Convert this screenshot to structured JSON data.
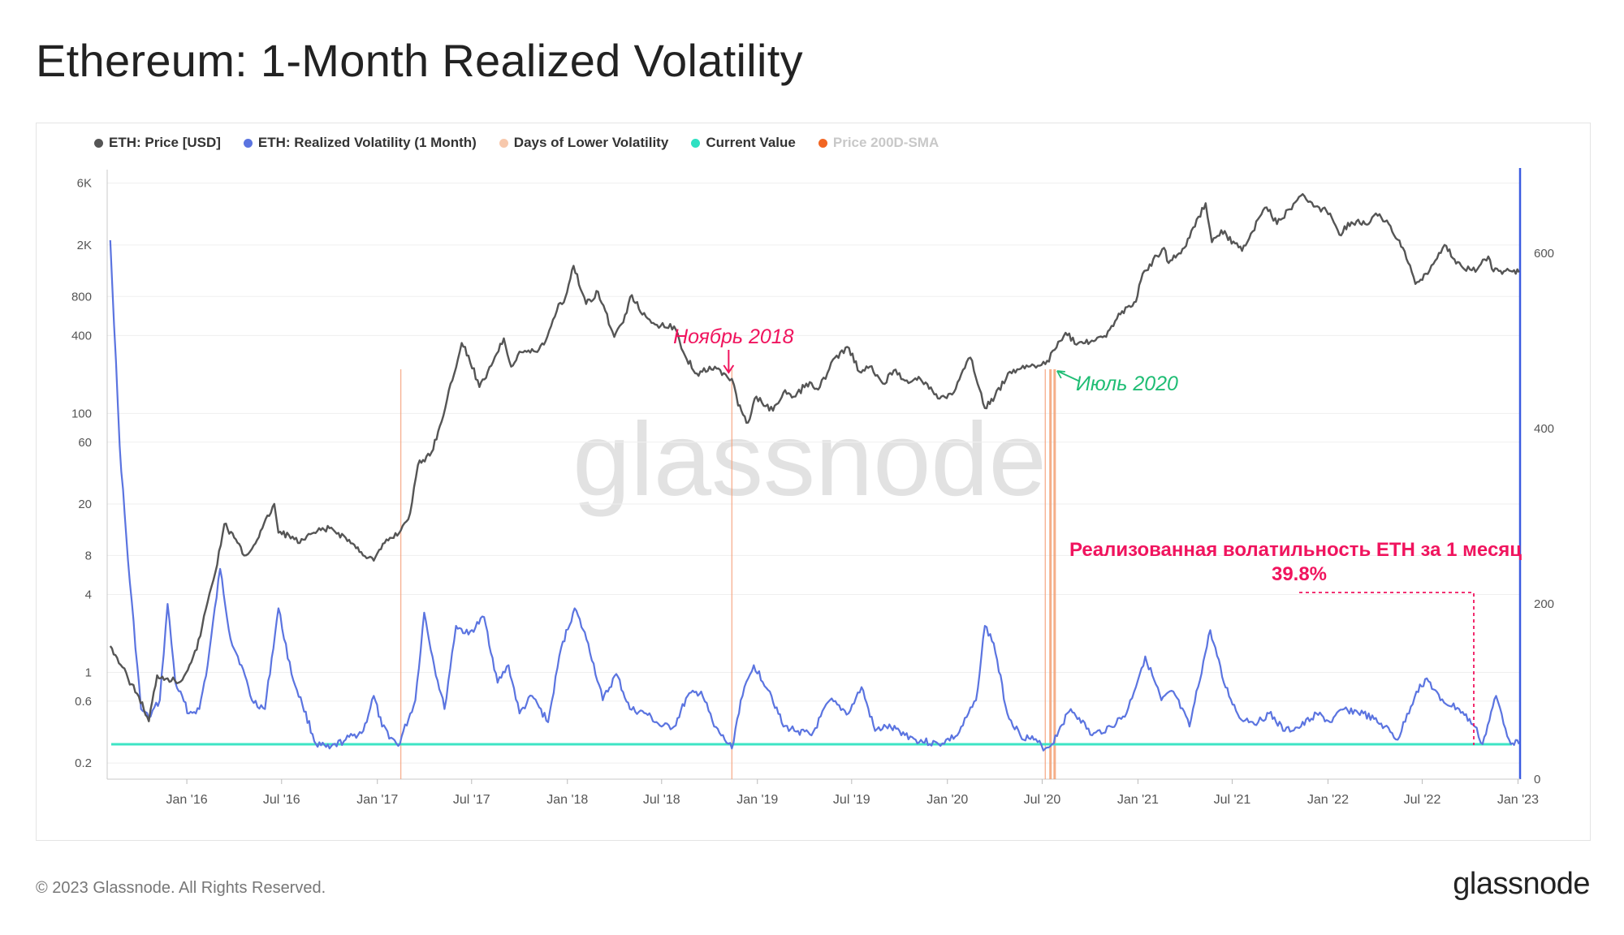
{
  "title": "Ethereum: 1-Month Realized Volatility",
  "legend": [
    {
      "label": "ETH: Price [USD]",
      "color": "#555555",
      "muted": false
    },
    {
      "label": "ETH: Realized Volatility (1 Month)",
      "color": "#5b74e0",
      "muted": false
    },
    {
      "label": "Days of Lower Volatility",
      "color": "#f7c8ac",
      "muted": false
    },
    {
      "label": "Current Value",
      "color": "#2ee0c2",
      "muted": false
    },
    {
      "label": "Price 200D-SMA",
      "color": "#f26522",
      "muted": true
    }
  ],
  "watermark": "glassnode",
  "footer": {
    "copyright": "© 2023 Glassnode. All Rights Reserved.",
    "brand": "glassnode"
  },
  "colors": {
    "price": "#555555",
    "volatility": "#5b74e0",
    "lower_vol": "#f5a07a",
    "lower_vol_thick": "#f39a6a",
    "current": "#3de4c4",
    "annotation_pink": "#f0145e",
    "annotation_green": "#1fbd74",
    "right_axis": "#3a5be0",
    "grid": "#efefef"
  },
  "annotations": {
    "nov2018": "Ноябрь 2018",
    "jul2020": "Июль 2020",
    "rv_line1": "Реализованная волатильность ETH за 1 месяц",
    "rv_line2": "39.8%"
  },
  "chart_data": {
    "type": "line",
    "title": "Ethereum: 1-Month Realized Volatility",
    "x_range": [
      "2015-08-01",
      "2023-01-05"
    ],
    "x_ticks": [
      "Jan '16",
      "Jul '16",
      "Jan '17",
      "Jul '17",
      "Jan '18",
      "Jul '18",
      "Jan '19",
      "Jul '19",
      "Jan '20",
      "Jul '20",
      "Jan '21",
      "Jul '21",
      "Jan '22",
      "Jul '22",
      "Jan '23"
    ],
    "y_left": {
      "scale": "log",
      "range": [
        0.15,
        7000
      ],
      "ticks": [
        "6K",
        "2K",
        "800",
        "400",
        "100",
        "60",
        "20",
        "8",
        "4",
        "1",
        "0.6",
        "0.2"
      ]
    },
    "y_right": {
      "scale": "linear",
      "range": [
        0,
        690
      ],
      "ticks": [
        "600",
        "400",
        "200",
        "0"
      ]
    },
    "current_value": 39.8,
    "lower_volatility_dates": [
      "2017-02-15",
      "2018-11-13",
      "2020-07-07",
      "2020-07-17",
      "2020-07-25"
    ],
    "series": [
      {
        "name": "ETH: Price [USD]",
        "axis": "left",
        "points": [
          [
            "2015-08-07",
            1.6
          ],
          [
            "2015-08-20",
            1.3
          ],
          [
            "2015-09-10",
            0.9
          ],
          [
            "2015-10-01",
            0.65
          ],
          [
            "2015-10-20",
            0.42
          ],
          [
            "2015-11-05",
            0.95
          ],
          [
            "2015-11-25",
            0.9
          ],
          [
            "2015-12-20",
            0.85
          ],
          [
            "2016-01-20",
            1.5
          ],
          [
            "2016-02-10",
            3.5
          ],
          [
            "2016-02-25",
            6
          ],
          [
            "2016-03-13",
            14
          ],
          [
            "2016-04-01",
            11
          ],
          [
            "2016-04-20",
            8
          ],
          [
            "2016-05-05",
            9
          ],
          [
            "2016-05-25",
            13
          ],
          [
            "2016-06-17",
            20
          ],
          [
            "2016-06-25",
            12
          ],
          [
            "2016-07-15",
            11.5
          ],
          [
            "2016-08-05",
            10
          ],
          [
            "2016-09-01",
            12
          ],
          [
            "2016-10-01",
            13
          ],
          [
            "2016-11-01",
            11
          ],
          [
            "2016-12-01",
            8.5
          ],
          [
            "2016-12-25",
            7.3
          ],
          [
            "2017-01-15",
            10
          ],
          [
            "2017-02-15",
            12.5
          ],
          [
            "2017-03-05",
            17
          ],
          [
            "2017-03-20",
            40
          ],
          [
            "2017-04-15",
            50
          ],
          [
            "2017-05-01",
            80
          ],
          [
            "2017-05-25",
            180
          ],
          [
            "2017-06-12",
            350
          ],
          [
            "2017-06-25",
            280
          ],
          [
            "2017-07-16",
            160
          ],
          [
            "2017-08-01",
            210
          ],
          [
            "2017-09-01",
            380
          ],
          [
            "2017-09-15",
            230
          ],
          [
            "2017-10-01",
            300
          ],
          [
            "2017-11-01",
            300
          ],
          [
            "2017-11-20",
            360
          ],
          [
            "2017-12-15",
            700
          ],
          [
            "2017-12-25",
            720
          ],
          [
            "2018-01-13",
            1380
          ],
          [
            "2018-02-06",
            700
          ],
          [
            "2018-03-01",
            870
          ],
          [
            "2018-04-01",
            390
          ],
          [
            "2018-04-15",
            490
          ],
          [
            "2018-05-05",
            820
          ],
          [
            "2018-05-25",
            580
          ],
          [
            "2018-06-15",
            500
          ],
          [
            "2018-07-10",
            460
          ],
          [
            "2018-07-25",
            470
          ],
          [
            "2018-08-15",
            280
          ],
          [
            "2018-09-10",
            195
          ],
          [
            "2018-10-01",
            230
          ],
          [
            "2018-11-01",
            200
          ],
          [
            "2018-11-13",
            185
          ],
          [
            "2018-11-25",
            115
          ],
          [
            "2018-12-14",
            85
          ],
          [
            "2018-12-30",
            135
          ],
          [
            "2019-01-31",
            105
          ],
          [
            "2019-02-20",
            145
          ],
          [
            "2019-03-15",
            135
          ],
          [
            "2019-04-05",
            170
          ],
          [
            "2019-05-01",
            160
          ],
          [
            "2019-05-30",
            270
          ],
          [
            "2019-06-26",
            320
          ],
          [
            "2019-07-16",
            210
          ],
          [
            "2019-08-05",
            230
          ],
          [
            "2019-08-30",
            170
          ],
          [
            "2019-09-20",
            215
          ],
          [
            "2019-10-15",
            180
          ],
          [
            "2019-11-10",
            185
          ],
          [
            "2019-12-17",
            130
          ],
          [
            "2020-01-10",
            140
          ],
          [
            "2020-02-14",
            270
          ],
          [
            "2020-03-13",
            110
          ],
          [
            "2020-04-01",
            135
          ],
          [
            "2020-04-30",
            210
          ],
          [
            "2020-06-01",
            235
          ],
          [
            "2020-07-07",
            240
          ],
          [
            "2020-07-25",
            310
          ],
          [
            "2020-08-15",
            420
          ],
          [
            "2020-09-05",
            340
          ],
          [
            "2020-10-01",
            355
          ],
          [
            "2020-11-01",
            390
          ],
          [
            "2020-11-25",
            590
          ],
          [
            "2020-12-28",
            730
          ],
          [
            "2021-01-10",
            1200
          ],
          [
            "2021-02-20",
            1900
          ],
          [
            "2021-03-01",
            1450
          ],
          [
            "2021-03-31",
            1900
          ],
          [
            "2021-05-11",
            4200
          ],
          [
            "2021-05-23",
            2100
          ],
          [
            "2021-06-10",
            2600
          ],
          [
            "2021-07-20",
            1800
          ],
          [
            "2021-08-23",
            3300
          ],
          [
            "2021-09-05",
            3900
          ],
          [
            "2021-09-25",
            2900
          ],
          [
            "2021-11-10",
            4800
          ],
          [
            "2021-12-15",
            3900
          ],
          [
            "2022-01-05",
            3500
          ],
          [
            "2022-01-23",
            2400
          ],
          [
            "2022-02-15",
            3000
          ],
          [
            "2022-03-20",
            2900
          ],
          [
            "2022-04-03",
            3500
          ],
          [
            "2022-05-01",
            2800
          ],
          [
            "2022-05-25",
            1900
          ],
          [
            "2022-06-18",
            1000
          ],
          [
            "2022-07-08",
            1200
          ],
          [
            "2022-08-13",
            2000
          ],
          [
            "2022-09-01",
            1550
          ],
          [
            "2022-09-20",
            1300
          ],
          [
            "2022-10-15",
            1300
          ],
          [
            "2022-11-05",
            1630
          ],
          [
            "2022-11-15",
            1250
          ],
          [
            "2022-12-15",
            1270
          ],
          [
            "2023-01-03",
            1230
          ]
        ]
      },
      {
        "name": "ETH: Realized Volatility (1 Month)",
        "axis": "right",
        "points": [
          [
            "2015-08-07",
            615
          ],
          [
            "2015-08-25",
            380
          ],
          [
            "2015-09-10",
            250
          ],
          [
            "2015-10-05",
            80
          ],
          [
            "2015-10-20",
            70
          ],
          [
            "2015-11-10",
            90
          ],
          [
            "2015-11-25",
            200
          ],
          [
            "2015-12-10",
            110
          ],
          [
            "2016-01-05",
            75
          ],
          [
            "2016-01-25",
            80
          ],
          [
            "2016-02-10",
            130
          ],
          [
            "2016-03-05",
            240
          ],
          [
            "2016-03-25",
            160
          ],
          [
            "2016-04-15",
            130
          ],
          [
            "2016-05-05",
            90
          ],
          [
            "2016-05-30",
            80
          ],
          [
            "2016-06-25",
            195
          ],
          [
            "2016-07-20",
            120
          ],
          [
            "2016-08-10",
            85
          ],
          [
            "2016-09-05",
            40
          ],
          [
            "2016-10-01",
            35
          ],
          [
            "2016-11-01",
            45
          ],
          [
            "2016-12-05",
            55
          ],
          [
            "2016-12-25",
            95
          ],
          [
            "2017-01-10",
            60
          ],
          [
            "2017-02-10",
            38
          ],
          [
            "2017-03-15",
            90
          ],
          [
            "2017-04-01",
            190
          ],
          [
            "2017-04-20",
            130
          ],
          [
            "2017-05-10",
            80
          ],
          [
            "2017-06-01",
            175
          ],
          [
            "2017-06-25",
            165
          ],
          [
            "2017-07-25",
            185
          ],
          [
            "2017-08-20",
            110
          ],
          [
            "2017-09-10",
            130
          ],
          [
            "2017-10-01",
            75
          ],
          [
            "2017-10-25",
            95
          ],
          [
            "2017-11-25",
            65
          ],
          [
            "2017-12-20",
            150
          ],
          [
            "2018-01-15",
            195
          ],
          [
            "2018-02-10",
            155
          ],
          [
            "2018-03-10",
            90
          ],
          [
            "2018-04-05",
            120
          ],
          [
            "2018-05-01",
            80
          ],
          [
            "2018-06-01",
            75
          ],
          [
            "2018-07-01",
            60
          ],
          [
            "2018-07-25",
            60
          ],
          [
            "2018-08-20",
            95
          ],
          [
            "2018-09-15",
            100
          ],
          [
            "2018-10-10",
            60
          ],
          [
            "2018-11-13",
            35
          ],
          [
            "2018-11-30",
            90
          ],
          [
            "2018-12-25",
            130
          ],
          [
            "2019-01-25",
            100
          ],
          [
            "2019-02-20",
            60
          ],
          [
            "2019-03-20",
            55
          ],
          [
            "2019-04-15",
            50
          ],
          [
            "2019-05-20",
            90
          ],
          [
            "2019-06-25",
            75
          ],
          [
            "2019-07-20",
            105
          ],
          [
            "2019-08-15",
            55
          ],
          [
            "2019-09-05",
            60
          ],
          [
            "2019-10-01",
            55
          ],
          [
            "2019-11-01",
            45
          ],
          [
            "2019-12-15",
            40
          ],
          [
            "2020-01-20",
            50
          ],
          [
            "2020-02-25",
            90
          ],
          [
            "2020-03-13",
            175
          ],
          [
            "2020-03-30",
            155
          ],
          [
            "2020-04-25",
            75
          ],
          [
            "2020-05-20",
            50
          ],
          [
            "2020-06-15",
            45
          ],
          [
            "2020-07-07",
            35
          ],
          [
            "2020-07-20",
            40
          ],
          [
            "2020-08-05",
            60
          ],
          [
            "2020-08-25",
            80
          ],
          [
            "2020-09-10",
            70
          ],
          [
            "2020-10-05",
            50
          ],
          [
            "2020-11-10",
            60
          ],
          [
            "2020-12-10",
            75
          ],
          [
            "2021-01-15",
            140
          ],
          [
            "2021-02-15",
            90
          ],
          [
            "2021-03-10",
            100
          ],
          [
            "2021-04-10",
            60
          ],
          [
            "2021-05-20",
            170
          ],
          [
            "2021-06-15",
            110
          ],
          [
            "2021-07-15",
            70
          ],
          [
            "2021-08-20",
            65
          ],
          [
            "2021-09-10",
            75
          ],
          [
            "2021-10-10",
            55
          ],
          [
            "2021-11-10",
            60
          ],
          [
            "2021-12-10",
            75
          ],
          [
            "2022-01-05",
            65
          ],
          [
            "2022-02-01",
            80
          ],
          [
            "2022-03-10",
            75
          ],
          [
            "2022-04-20",
            60
          ],
          [
            "2022-05-15",
            45
          ],
          [
            "2022-06-20",
            100
          ],
          [
            "2022-07-10",
            115
          ],
          [
            "2022-08-05",
            90
          ],
          [
            "2022-09-10",
            80
          ],
          [
            "2022-10-10",
            60
          ],
          [
            "2022-10-25",
            40
          ],
          [
            "2022-11-20",
            95
          ],
          [
            "2022-12-15",
            45
          ],
          [
            "2023-01-03",
            40
          ]
        ]
      }
    ]
  }
}
